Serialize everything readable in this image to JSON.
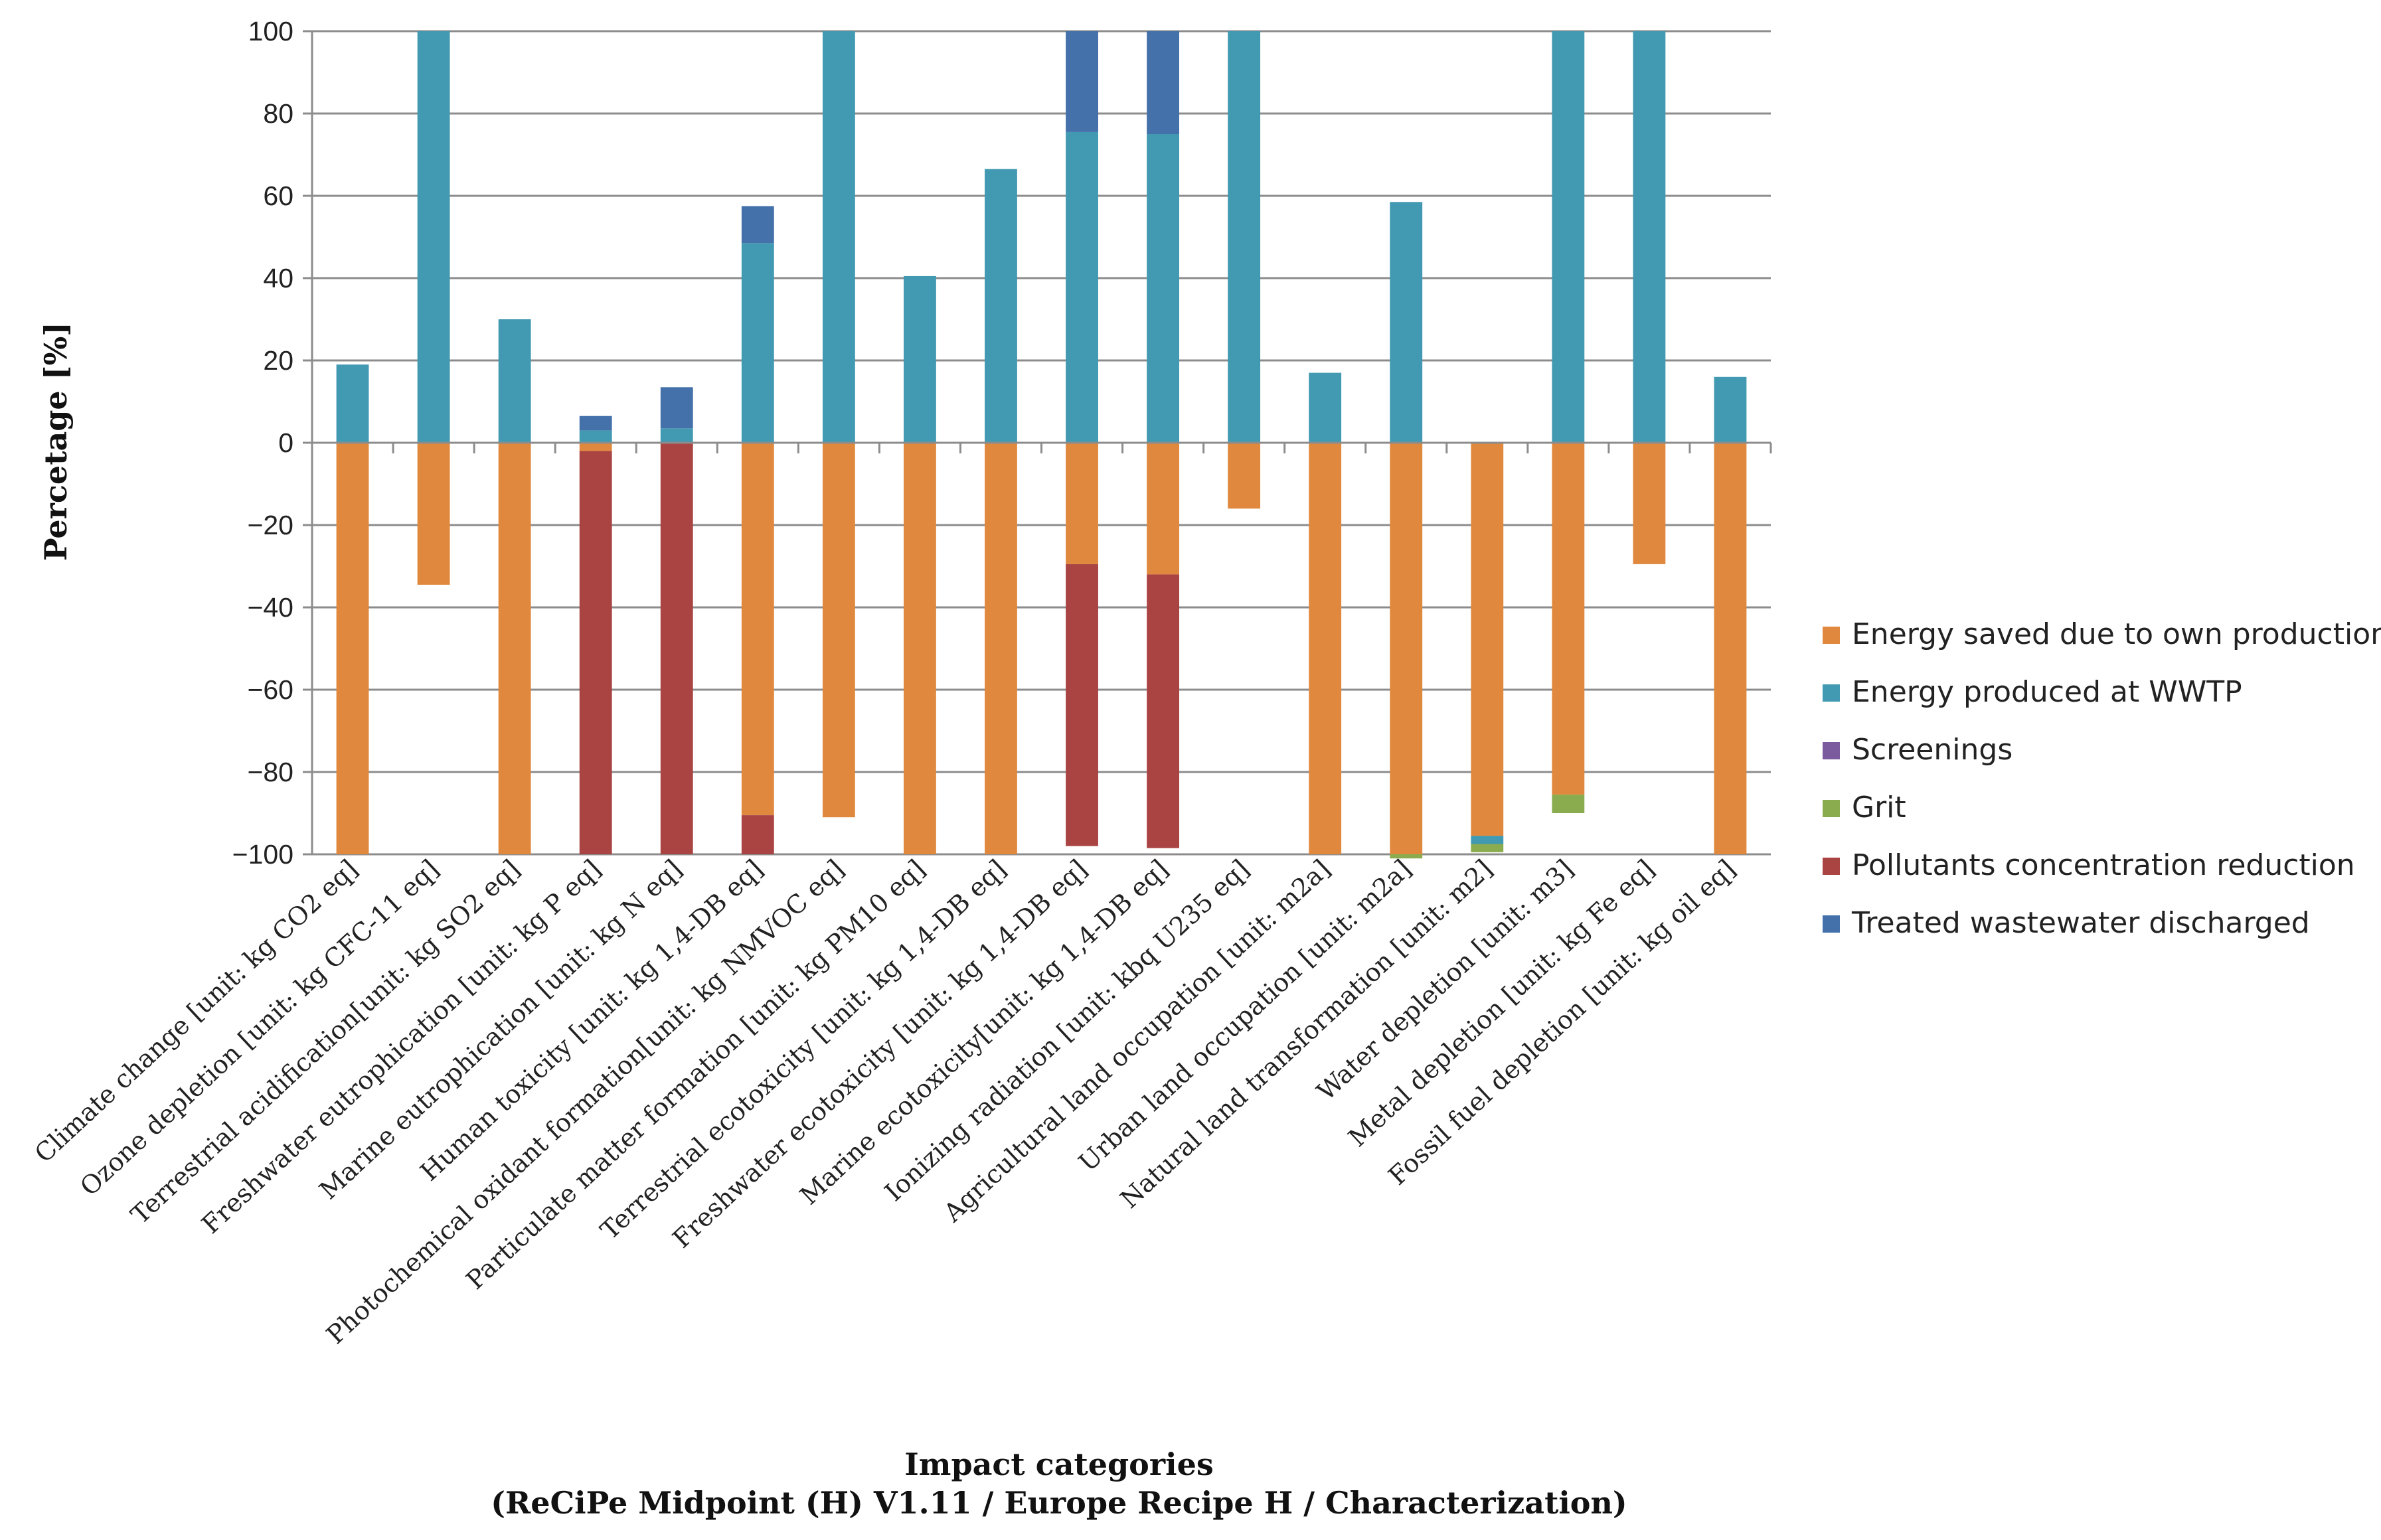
{
  "chart_data": {
    "type": "bar",
    "stacked": true,
    "title": "",
    "ylabel": "Percetage [%]",
    "xlabel": "Impact categories",
    "xlabel_sub": "(ReCiPe Midpoint (H) V1.11 / Europe Recipe H / Characterization)",
    "ylim": [
      -100,
      100
    ],
    "yticks": [
      "100",
      "80",
      "60",
      "40",
      "20",
      "0",
      "−20",
      "−40",
      "−60",
      "−80",
      "−100"
    ],
    "ytick_values": [
      100,
      80,
      60,
      40,
      20,
      0,
      -20,
      -40,
      -60,
      -80,
      -100
    ],
    "grid": "horizontal",
    "legend_position": "right",
    "categories": [
      "Climate change [unit: kg CO2 eq]",
      "Ozone depletion [unit: kg CFC-11 eq]",
      "Terrestrial acidification[unit: kg SO2 eq]",
      "Freshwater eutrophication [unit: kg P eq]",
      "Marine eutrophication [unit: kg N eq]",
      "Human toxicity [unit: kg 1,4-DB eq]",
      "Photochemical oxidant formation[unit: kg NMVOC eq]",
      "Particulate matter formation [unit: kg PM10 eq]",
      "Terrestrial ecotoxicity [unit: kg 1,4-DB eq]",
      "Freshwater ecotoxicity [unit: kg 1,4-DB eq]",
      "Marine ecotoxicity[unit: kg 1,4-DB eq]",
      "Ionizing radiation [unit: kbq U235 eq]",
      "Agricultural land occupation [unit: m2a]",
      "Urban land occupation [unit: m2a]",
      "Natural land transformation [unit: m2]",
      "Water depletion [unit: m3]",
      "Metal depletion [unit: kg Fe eq]",
      "Fossil fuel depletion [unit: kg oil eq]"
    ],
    "series": [
      {
        "name": "Energy saved due to own production",
        "color": "#e0893e",
        "values": [
          -100,
          -34.5,
          -100,
          -2,
          0,
          -90.5,
          -91,
          -100,
          -100,
          -29.5,
          -32,
          -16,
          -100,
          -100,
          -95.5,
          -85.5,
          -29.5,
          -100
        ]
      },
      {
        "name": "Energy produced at WWTP",
        "color": "#4199b2",
        "values": [
          19,
          100,
          30,
          3,
          3.5,
          48.5,
          100,
          40.5,
          66.5,
          75.5,
          75,
          100,
          17,
          58.5,
          -2,
          100,
          100,
          16
        ]
      },
      {
        "name": "Screenings",
        "color": "#7c5a9e",
        "values": [
          0,
          0,
          0,
          0,
          0,
          0,
          0,
          0,
          0,
          0,
          0,
          0,
          0,
          0,
          0,
          0,
          0,
          0
        ]
      },
      {
        "name": "Grit",
        "color": "#8aac4f",
        "values": [
          0,
          0,
          0,
          0,
          0,
          0,
          0,
          0,
          0,
          0,
          0,
          0,
          0,
          -1,
          -2,
          -4.5,
          0,
          0
        ]
      },
      {
        "name": "Pollutants concentration reduction",
        "color": "#a94443",
        "values": [
          0,
          0,
          0,
          -98,
          -100,
          -9.5,
          0,
          0,
          0,
          -68.5,
          -66.5,
          0,
          0,
          0,
          0,
          0,
          0,
          0
        ]
      },
      {
        "name": "Treated wastewater discharged",
        "color": "#4471a9",
        "values": [
          0,
          0,
          0,
          3.5,
          10,
          9,
          0,
          0,
          0,
          24.5,
          25,
          0,
          0,
          0,
          0,
          0,
          0,
          0
        ]
      }
    ]
  }
}
